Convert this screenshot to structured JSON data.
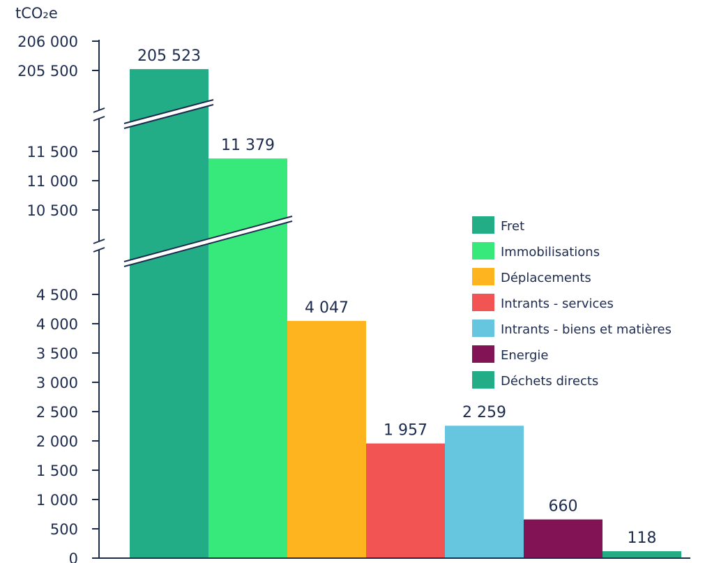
{
  "chart_data": {
    "type": "bar",
    "y_unit": "tCO₂e",
    "axis_break": true,
    "y_segments": [
      {
        "range": [
          0,
          4500
        ],
        "ticks": [
          "0",
          "500",
          "1 000",
          "1 500",
          "2 000",
          "2 500",
          "3 000",
          "3 500",
          "4 000",
          "4 500"
        ]
      },
      {
        "range": [
          10500,
          11500
        ],
        "ticks": [
          "10 500",
          "11 000",
          "11 500"
        ]
      },
      {
        "range": [
          205500,
          206000
        ],
        "ticks": [
          "205 500",
          "206 000"
        ]
      }
    ],
    "categories": [
      "Fret",
      "Immobilisations",
      "Déplacements",
      "Intrants - services",
      "Intrants - biens et matières",
      "Energie",
      "Déchets directs"
    ],
    "values": [
      205523,
      11379,
      4047,
      1957,
      2259,
      660,
      118
    ],
    "value_labels": [
      "205 523",
      "11 379",
      "4 047",
      "1 957",
      "2 259",
      "660",
      "118"
    ],
    "colors": [
      "#22ad86",
      "#37e87a",
      "#fdb41f",
      "#f25454",
      "#66c6df",
      "#821455",
      "#22ad86"
    ],
    "legend_position": "right",
    "grid": false
  }
}
